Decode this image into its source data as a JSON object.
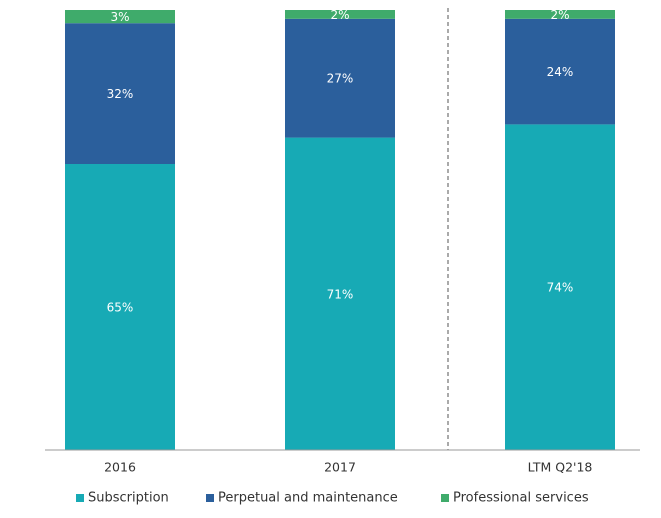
{
  "chart_data": {
    "type": "stacked_bar",
    "categories": [
      "2016",
      "2017",
      "LTM Q2'18"
    ],
    "series": [
      {
        "name": "Subscription",
        "color": "#17aab5",
        "values": [
          65,
          71,
          74
        ],
        "value_labels": [
          "65%",
          "71%",
          "74%"
        ]
      },
      {
        "name": "Perpetual and maintenance",
        "color": "#2b5f9c",
        "values": [
          32,
          27,
          24
        ],
        "value_labels": [
          "32%",
          "27%",
          "24%"
        ]
      },
      {
        "name": "Professional services",
        "color": "#3fab6b",
        "values": [
          3,
          2,
          2
        ],
        "value_labels": [
          "3%",
          "2%",
          "2%"
        ]
      }
    ]
  }
}
